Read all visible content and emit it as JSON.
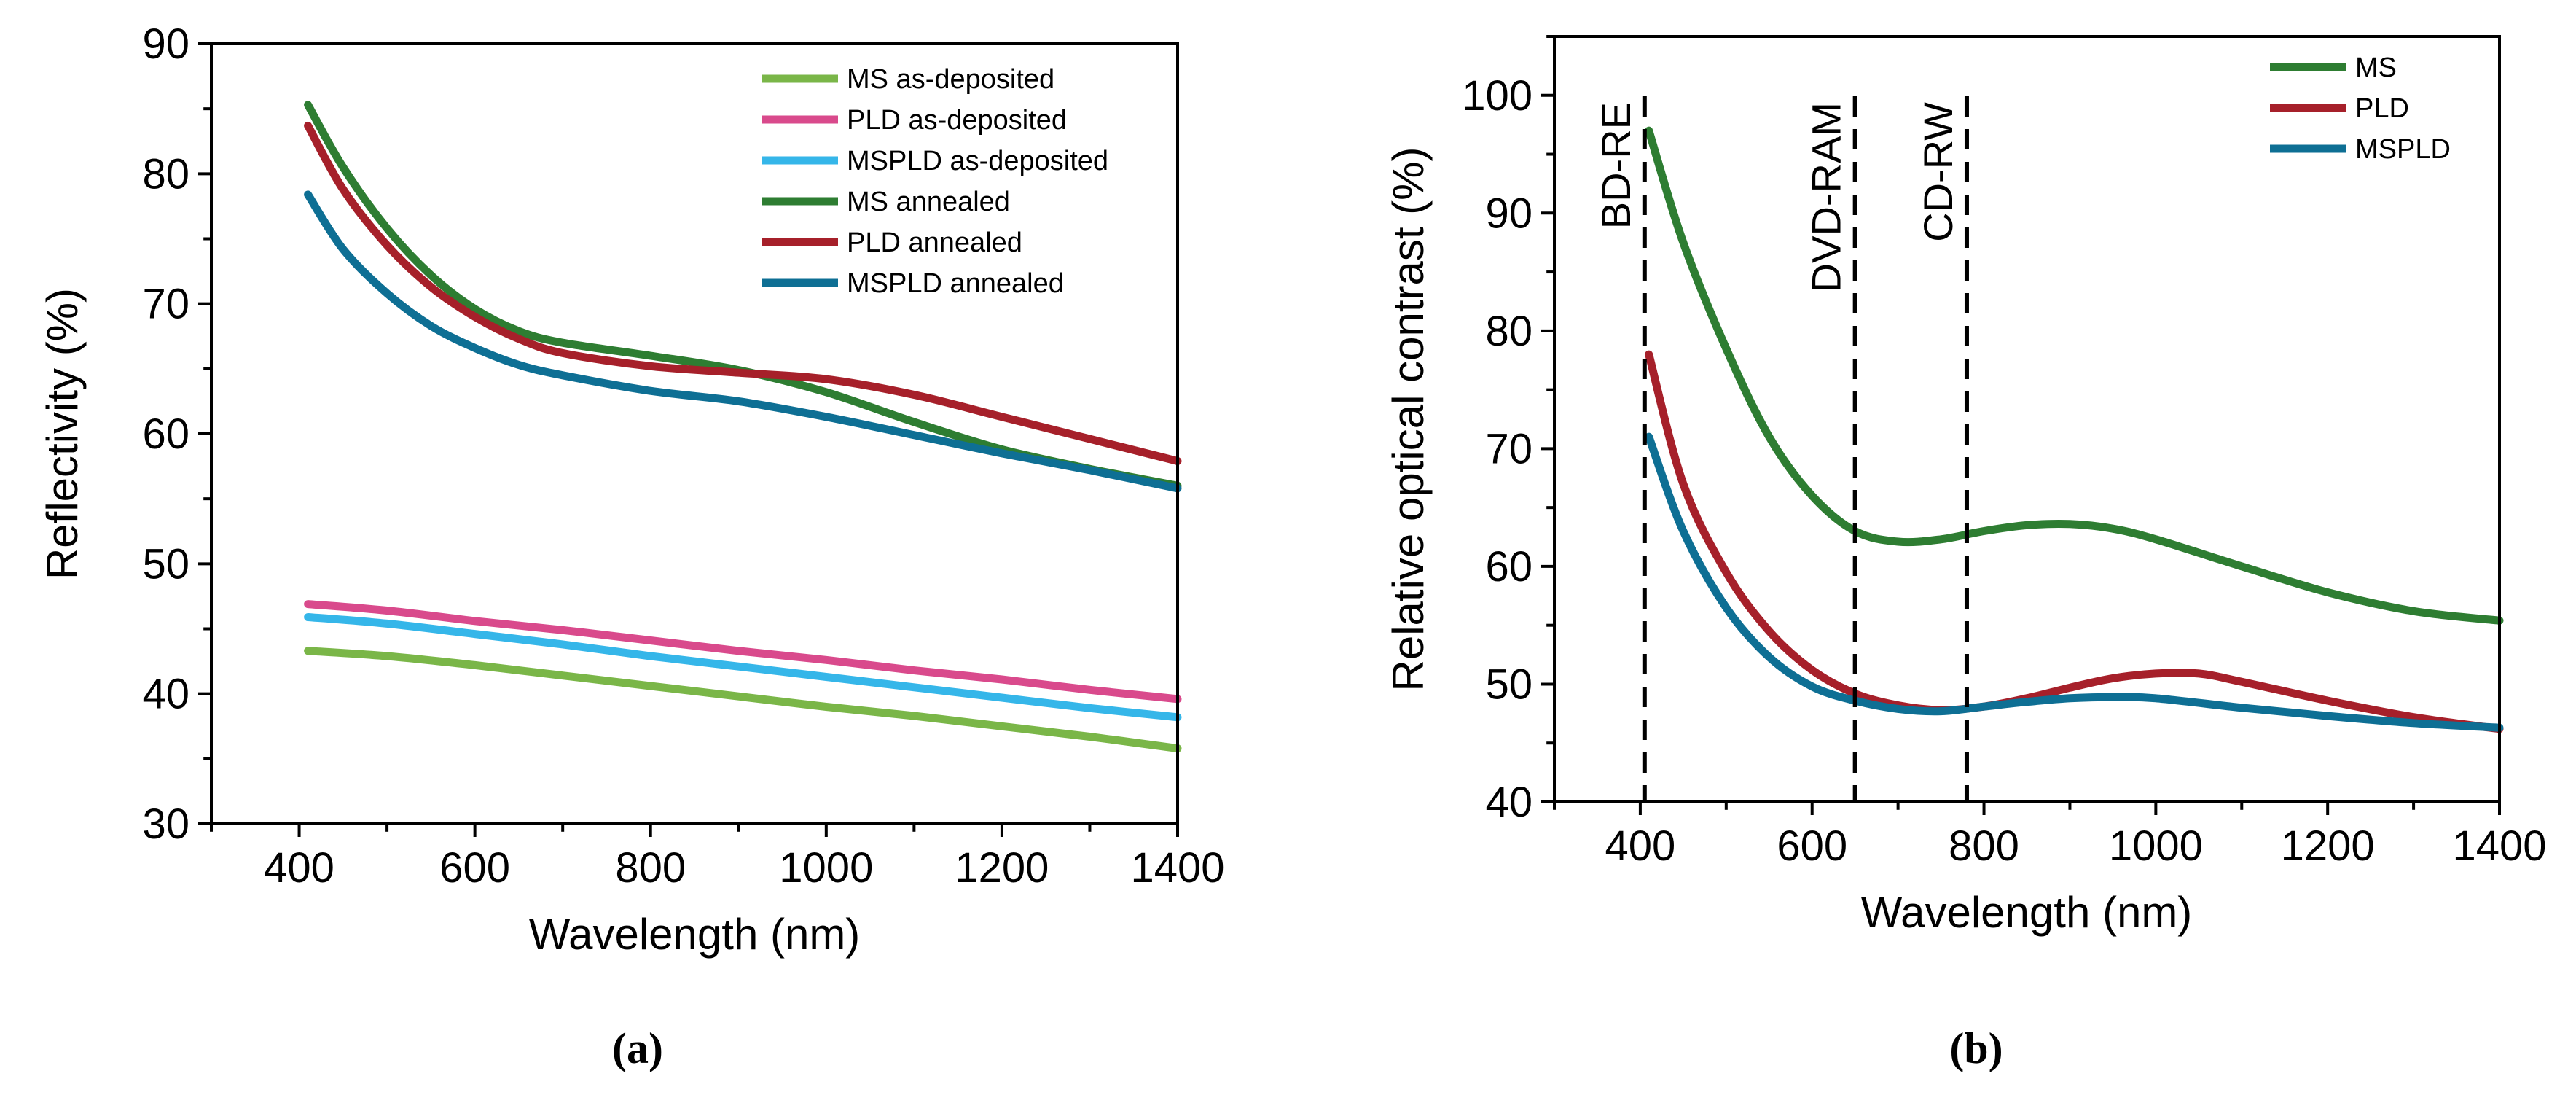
{
  "chart_data": [
    {
      "panel_label": "(a)",
      "type": "line",
      "xlabel": "Wavelength (nm)",
      "ylabel": "Reflectivity (%)",
      "xlim": [
        300,
        1400
      ],
      "ylim": [
        30,
        90
      ],
      "xticks": [
        400,
        600,
        800,
        1000,
        1200,
        1400
      ],
      "yticks": [
        30,
        40,
        50,
        60,
        70,
        80,
        90
      ],
      "legend_position": "top-right",
      "grid": false,
      "series": [
        {
          "name": "MS as-deposited",
          "color": "#7ab648",
          "x": [
            410,
            500,
            600,
            700,
            800,
            900,
            1000,
            1100,
            1200,
            1300,
            1400
          ],
          "y": [
            43.3,
            42.9,
            42.2,
            41.4,
            40.6,
            39.8,
            39.0,
            38.3,
            37.5,
            36.7,
            35.8
          ]
        },
        {
          "name": "PLD as-deposited",
          "color": "#d94a8c",
          "x": [
            410,
            500,
            600,
            700,
            800,
            900,
            1000,
            1100,
            1200,
            1300,
            1400
          ],
          "y": [
            46.9,
            46.4,
            45.6,
            44.9,
            44.1,
            43.3,
            42.6,
            41.8,
            41.1,
            40.3,
            39.6
          ]
        },
        {
          "name": "MSPLD as-deposited",
          "color": "#35b6e9",
          "x": [
            410,
            500,
            600,
            700,
            800,
            900,
            1000,
            1100,
            1200,
            1300,
            1400
          ],
          "y": [
            45.9,
            45.4,
            44.6,
            43.8,
            42.9,
            42.1,
            41.3,
            40.5,
            39.7,
            38.9,
            38.2
          ]
        },
        {
          "name": "MS annealed",
          "color": "#2e7d32",
          "x": [
            410,
            450,
            500,
            550,
            600,
            650,
            700,
            800,
            900,
            1000,
            1100,
            1200,
            1300,
            1400
          ],
          "y": [
            85.3,
            80.5,
            75.8,
            72.2,
            69.6,
            67.9,
            67.0,
            66.0,
            64.9,
            63.2,
            60.9,
            58.8,
            57.3,
            56.0
          ]
        },
        {
          "name": "PLD annealed",
          "color": "#a6202a",
          "x": [
            410,
            450,
            500,
            550,
            600,
            650,
            700,
            800,
            900,
            1000,
            1100,
            1200,
            1300,
            1400
          ],
          "y": [
            83.7,
            78.8,
            74.5,
            71.3,
            69.0,
            67.3,
            66.2,
            65.2,
            64.7,
            64.2,
            63.0,
            61.3,
            59.6,
            57.9
          ]
        },
        {
          "name": "MSPLD annealed",
          "color": "#0e6f94",
          "x": [
            410,
            450,
            500,
            550,
            600,
            650,
            700,
            800,
            900,
            1000,
            1100,
            1200,
            1300,
            1400
          ],
          "y": [
            78.4,
            74.2,
            70.8,
            68.3,
            66.6,
            65.3,
            64.5,
            63.3,
            62.5,
            61.3,
            59.9,
            58.5,
            57.2,
            55.8
          ]
        }
      ]
    },
    {
      "panel_label": "(b)",
      "type": "line",
      "xlabel": "Wavelength (nm)",
      "ylabel": "Relative optical contrast (%)",
      "xlim": [
        300,
        1400
      ],
      "ylim": [
        40,
        105
      ],
      "xticks": [
        400,
        600,
        800,
        1000,
        1200,
        1400
      ],
      "yticks": [
        40,
        50,
        60,
        70,
        80,
        90,
        100
      ],
      "legend_position": "top-right",
      "grid": false,
      "reference_lines": [
        {
          "x": 405,
          "label": "BD-RE"
        },
        {
          "x": 650,
          "label": "DVD-RAM"
        },
        {
          "x": 780,
          "label": "CD-RW"
        }
      ],
      "series": [
        {
          "name": "MS",
          "color": "#2e7d32",
          "x": [
            410,
            450,
            500,
            550,
            600,
            650,
            700,
            750,
            800,
            850,
            900,
            950,
            1000,
            1100,
            1200,
            1300,
            1400
          ],
          "y": [
            97.0,
            87.5,
            78.5,
            71.0,
            66.0,
            63.0,
            62.1,
            62.3,
            63.0,
            63.5,
            63.6,
            63.2,
            62.3,
            60.0,
            57.8,
            56.2,
            55.4
          ]
        },
        {
          "name": "PLD",
          "color": "#a6202a",
          "x": [
            410,
            450,
            500,
            550,
            600,
            650,
            700,
            750,
            800,
            850,
            900,
            950,
            1000,
            1050,
            1100,
            1200,
            1300,
            1400
          ],
          "y": [
            78.0,
            67.0,
            59.5,
            54.5,
            51.2,
            49.2,
            48.2,
            47.8,
            48.1,
            48.8,
            49.7,
            50.5,
            50.9,
            50.9,
            50.2,
            48.6,
            47.2,
            46.2
          ]
        },
        {
          "name": "MSPLD",
          "color": "#0e6f94",
          "x": [
            410,
            450,
            500,
            550,
            600,
            650,
            700,
            750,
            800,
            850,
            900,
            950,
            1000,
            1100,
            1200,
            1300,
            1400
          ],
          "y": [
            71.0,
            63.0,
            56.5,
            52.3,
            49.8,
            48.6,
            47.9,
            47.7,
            48.1,
            48.5,
            48.8,
            48.9,
            48.8,
            48.0,
            47.3,
            46.7,
            46.3
          ]
        }
      ]
    }
  ]
}
